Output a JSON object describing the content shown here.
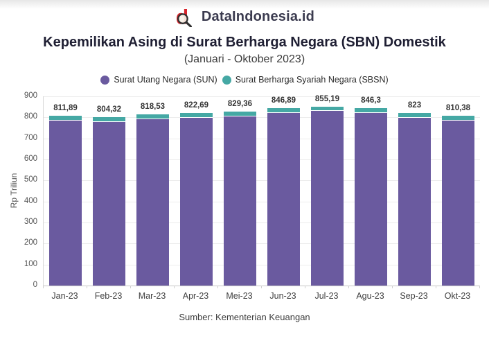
{
  "header": {
    "brand": "DataIndonesia.id",
    "logo_letter": "d"
  },
  "title": "Kepemilikan Asing di Surat Berharga Negara (SBN) Domestik",
  "subtitle": "(Januari - Oktober 2023)",
  "legend": {
    "items": [
      {
        "label": "Surat Utang Negara (SUN)",
        "color": "#6a5a9f"
      },
      {
        "label": "Surat Berharga Syariah Negara (SBSN)",
        "color": "#45a8a4"
      }
    ]
  },
  "footer": {
    "source": "Sumber: Kementerian Keuangan"
  },
  "colors": {
    "sun": "#6a5a9f",
    "sbsn": "#45a8a4",
    "logo_red": "#d8232a",
    "grid": "#ececec"
  },
  "chart_data": {
    "type": "bar",
    "stacked": true,
    "title": "Kepemilikan Asing di Surat Berharga Negara (SBN) Domestik",
    "subtitle": "(Januari - Oktober 2023)",
    "categories": [
      "Jan-23",
      "Feb-23",
      "Mar-23",
      "Apr-23",
      "Mei-23",
      "Jun-23",
      "Jul-23",
      "Agu-23",
      "Sep-23",
      "Okt-23"
    ],
    "series": [
      {
        "name": "Surat Utang Negara (SUN)",
        "color": "#6a5a9f",
        "values": [
          785.89,
          778.32,
          792.53,
          796.69,
          803.36,
          820.89,
          829.19,
          820.3,
          797.0,
          784.38
        ]
      },
      {
        "name": "Surat Berharga Syariah Negara (SBSN)",
        "color": "#45a8a4",
        "values": [
          26,
          26,
          26,
          26,
          26,
          26,
          26,
          26,
          26,
          26
        ]
      }
    ],
    "totals": [
      811.89,
      804.32,
      818.53,
      822.69,
      829.36,
      846.89,
      855.19,
      846.3,
      823,
      810.38
    ],
    "total_labels": [
      "811,89",
      "804,32",
      "818,53",
      "822,69",
      "829,36",
      "846,89",
      "855,19",
      "846,3",
      "823",
      "810,38"
    ],
    "xlabel": "",
    "ylabel": "Rp Triliun",
    "ylim": [
      0,
      900
    ],
    "yticks": [
      0,
      100,
      200,
      300,
      400,
      500,
      600,
      700,
      800,
      900
    ],
    "grid": true,
    "legend_position": "top",
    "source": "Sumber: Kementerian Keuangan"
  }
}
